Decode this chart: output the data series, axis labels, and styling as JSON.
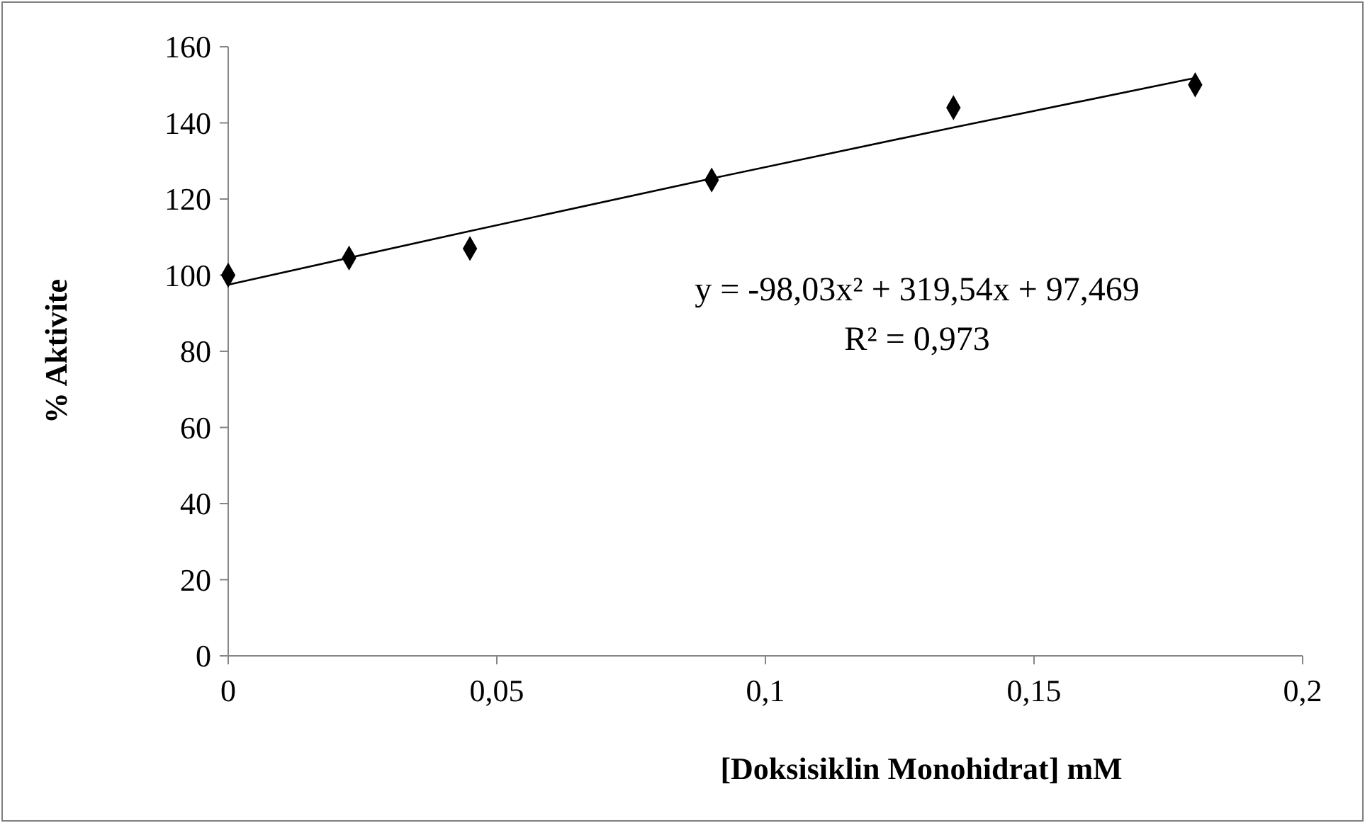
{
  "chart_data": {
    "type": "scatter",
    "xlabel": "[Doksisiklin Monohidrat]  mM",
    "ylabel": "% Aktivite",
    "x": [
      0,
      0.0225,
      0.045,
      0.09,
      0.135,
      0.18
    ],
    "series": [
      {
        "color": "#000000",
        "marker": "diamond",
        "values": [
          100,
          104.5,
          107,
          125,
          144,
          150
        ]
      },
      {
        "type": "line",
        "color": "#000000",
        "marker": "none",
        "line_style": "solid",
        "x": [
          0,
          0.045,
          0.09,
          0.135,
          0.18
        ],
        "values": [
          97.5,
          111.6,
          125.4,
          138.8,
          151.8
        ]
      }
    ],
    "xlim": [
      0,
      0.2
    ],
    "xticks": [
      0,
      {
        "value": 0.05,
        "label": "0,05"
      },
      {
        "value": 0.1,
        "label": "0,1"
      },
      {
        "value": 0.15,
        "label": "0,15"
      },
      {
        "value": 0.2,
        "label": "0,2"
      }
    ],
    "ylim": [
      0,
      160
    ],
    "yticks": [
      0,
      20,
      40,
      60,
      80,
      100,
      120,
      140,
      160
    ],
    "annotations": [
      "y = -98,03x² + 319,54x + 97,469",
      "R² = 0,973"
    ],
    "grid": false
  }
}
